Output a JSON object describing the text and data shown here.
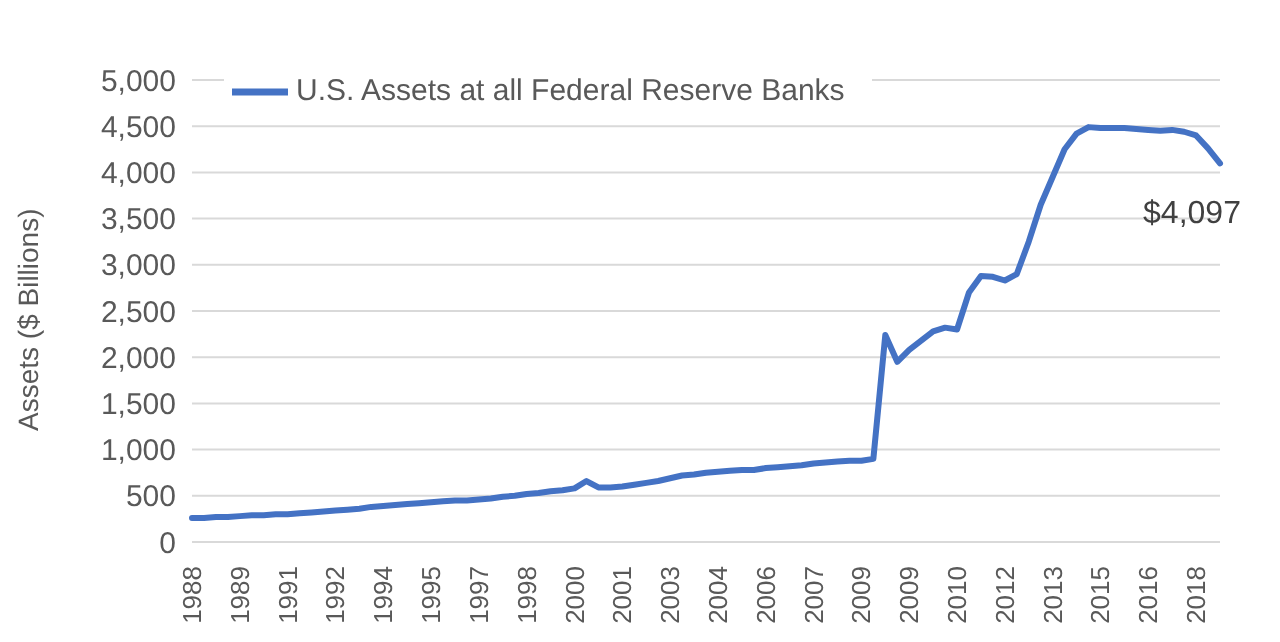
{
  "chart_data": {
    "type": "line",
    "ylabel": "Assets ($ Billions)",
    "categories": [
      "1988",
      null,
      null,
      null,
      "1989",
      null,
      null,
      null,
      "1991",
      null,
      null,
      null,
      "1992",
      null,
      null,
      null,
      "1994",
      null,
      null,
      null,
      "1995",
      null,
      null,
      null,
      "1997",
      null,
      null,
      null,
      "1998",
      null,
      null,
      null,
      "2000",
      null,
      null,
      null,
      "2001",
      null,
      null,
      null,
      "2003",
      null,
      null,
      null,
      "2004",
      null,
      null,
      null,
      "2006",
      null,
      null,
      null,
      "2007",
      null,
      null,
      null,
      "2009",
      null,
      null,
      null,
      "2009",
      null,
      null,
      null,
      "2010",
      null,
      null,
      null,
      "2012",
      null,
      null,
      null,
      "2013",
      null,
      null,
      null,
      "2015",
      null,
      null,
      null,
      "2016",
      null,
      null,
      null,
      "2018",
      null,
      null
    ],
    "series": [
      {
        "name": "U.S. Assets at all Federal Reserve Banks",
        "color": "#4472c4",
        "values": [
          260,
          260,
          270,
          270,
          280,
          290,
          290,
          300,
          300,
          310,
          320,
          330,
          340,
          350,
          360,
          380,
          390,
          400,
          410,
          420,
          430,
          440,
          450,
          450,
          460,
          470,
          490,
          500,
          520,
          530,
          550,
          560,
          580,
          660,
          590,
          590,
          600,
          620,
          640,
          660,
          690,
          720,
          730,
          750,
          760,
          770,
          780,
          780,
          800,
          810,
          820,
          830,
          850,
          860,
          870,
          880,
          880,
          900,
          2240,
          1950,
          2080,
          2180,
          2280,
          2320,
          2300,
          2700,
          2880,
          2870,
          2830,
          2900,
          3250,
          3650,
          3950,
          4250,
          4420,
          4490,
          4480,
          4480,
          4480,
          4470,
          4460,
          4450,
          4460,
          4440,
          4400,
          4260,
          4097
        ]
      }
    ],
    "ylim": [
      0,
      5000
    ],
    "yticks": [
      0,
      500,
      {
        "value": 1000,
        "label": "1,000"
      },
      {
        "value": 1500,
        "label": "1,500"
      },
      {
        "value": 2000,
        "label": "2,000"
      },
      {
        "value": 2500,
        "label": "2,500"
      },
      {
        "value": 3000,
        "label": "3,000"
      },
      {
        "value": 3500,
        "label": "3,500"
      },
      {
        "value": 4000,
        "label": "4,000"
      },
      {
        "value": 4500,
        "label": "4,500"
      },
      {
        "value": 5000,
        "label": "5,000"
      }
    ],
    "grid": "y",
    "legend": "top left",
    "marker": "none",
    "line_style": "solid",
    "annotations": [
      "$4,097"
    ]
  }
}
